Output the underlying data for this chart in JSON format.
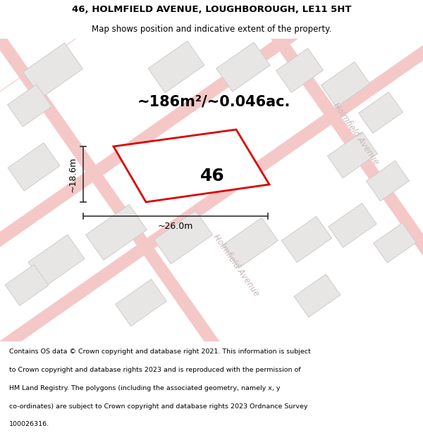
{
  "title_line1": "46, HOLMFIELD AVENUE, LOUGHBOROUGH, LE11 5HT",
  "title_line2": "Map shows position and indicative extent of the property.",
  "area_text": "~186m²/~0.046ac.",
  "label_46": "46",
  "dim_width": "~26.0m",
  "dim_height": "~18.6m",
  "road_label_upper": "Holmfield Avenue",
  "road_label_lower": "Holmfield Avenue",
  "footer_lines": [
    "Contains OS data © Crown copyright and database right 2021. This information is subject",
    "to Crown copyright and database rights 2023 and is reproduced with the permission of",
    "HM Land Registry. The polygons (including the associated geometry, namely x, y",
    "co-ordinates) are subject to Crown copyright and database rights 2023 Ordnance Survey",
    "100026316."
  ],
  "bg_color": "#ffffff",
  "map_bg": "#ffffff",
  "plot_color_fill": "#ffffff",
  "plot_color_edge": "#dd0000",
  "road_color": "#f5c8c8",
  "road_lw": 1.0,
  "building_fill": "#e8e5e5",
  "building_edge": "#cccccc",
  "dim_color": "#333333",
  "text_color": "#000000",
  "road_text_color": "#c8b8b8",
  "title_fontsize": 9.5,
  "subtitle_fontsize": 8.5,
  "area_fontsize": 15,
  "label_fontsize": 18,
  "dim_fontsize": 9,
  "footer_fontsize": 6.8,
  "road_label_fontsize": 8.5
}
